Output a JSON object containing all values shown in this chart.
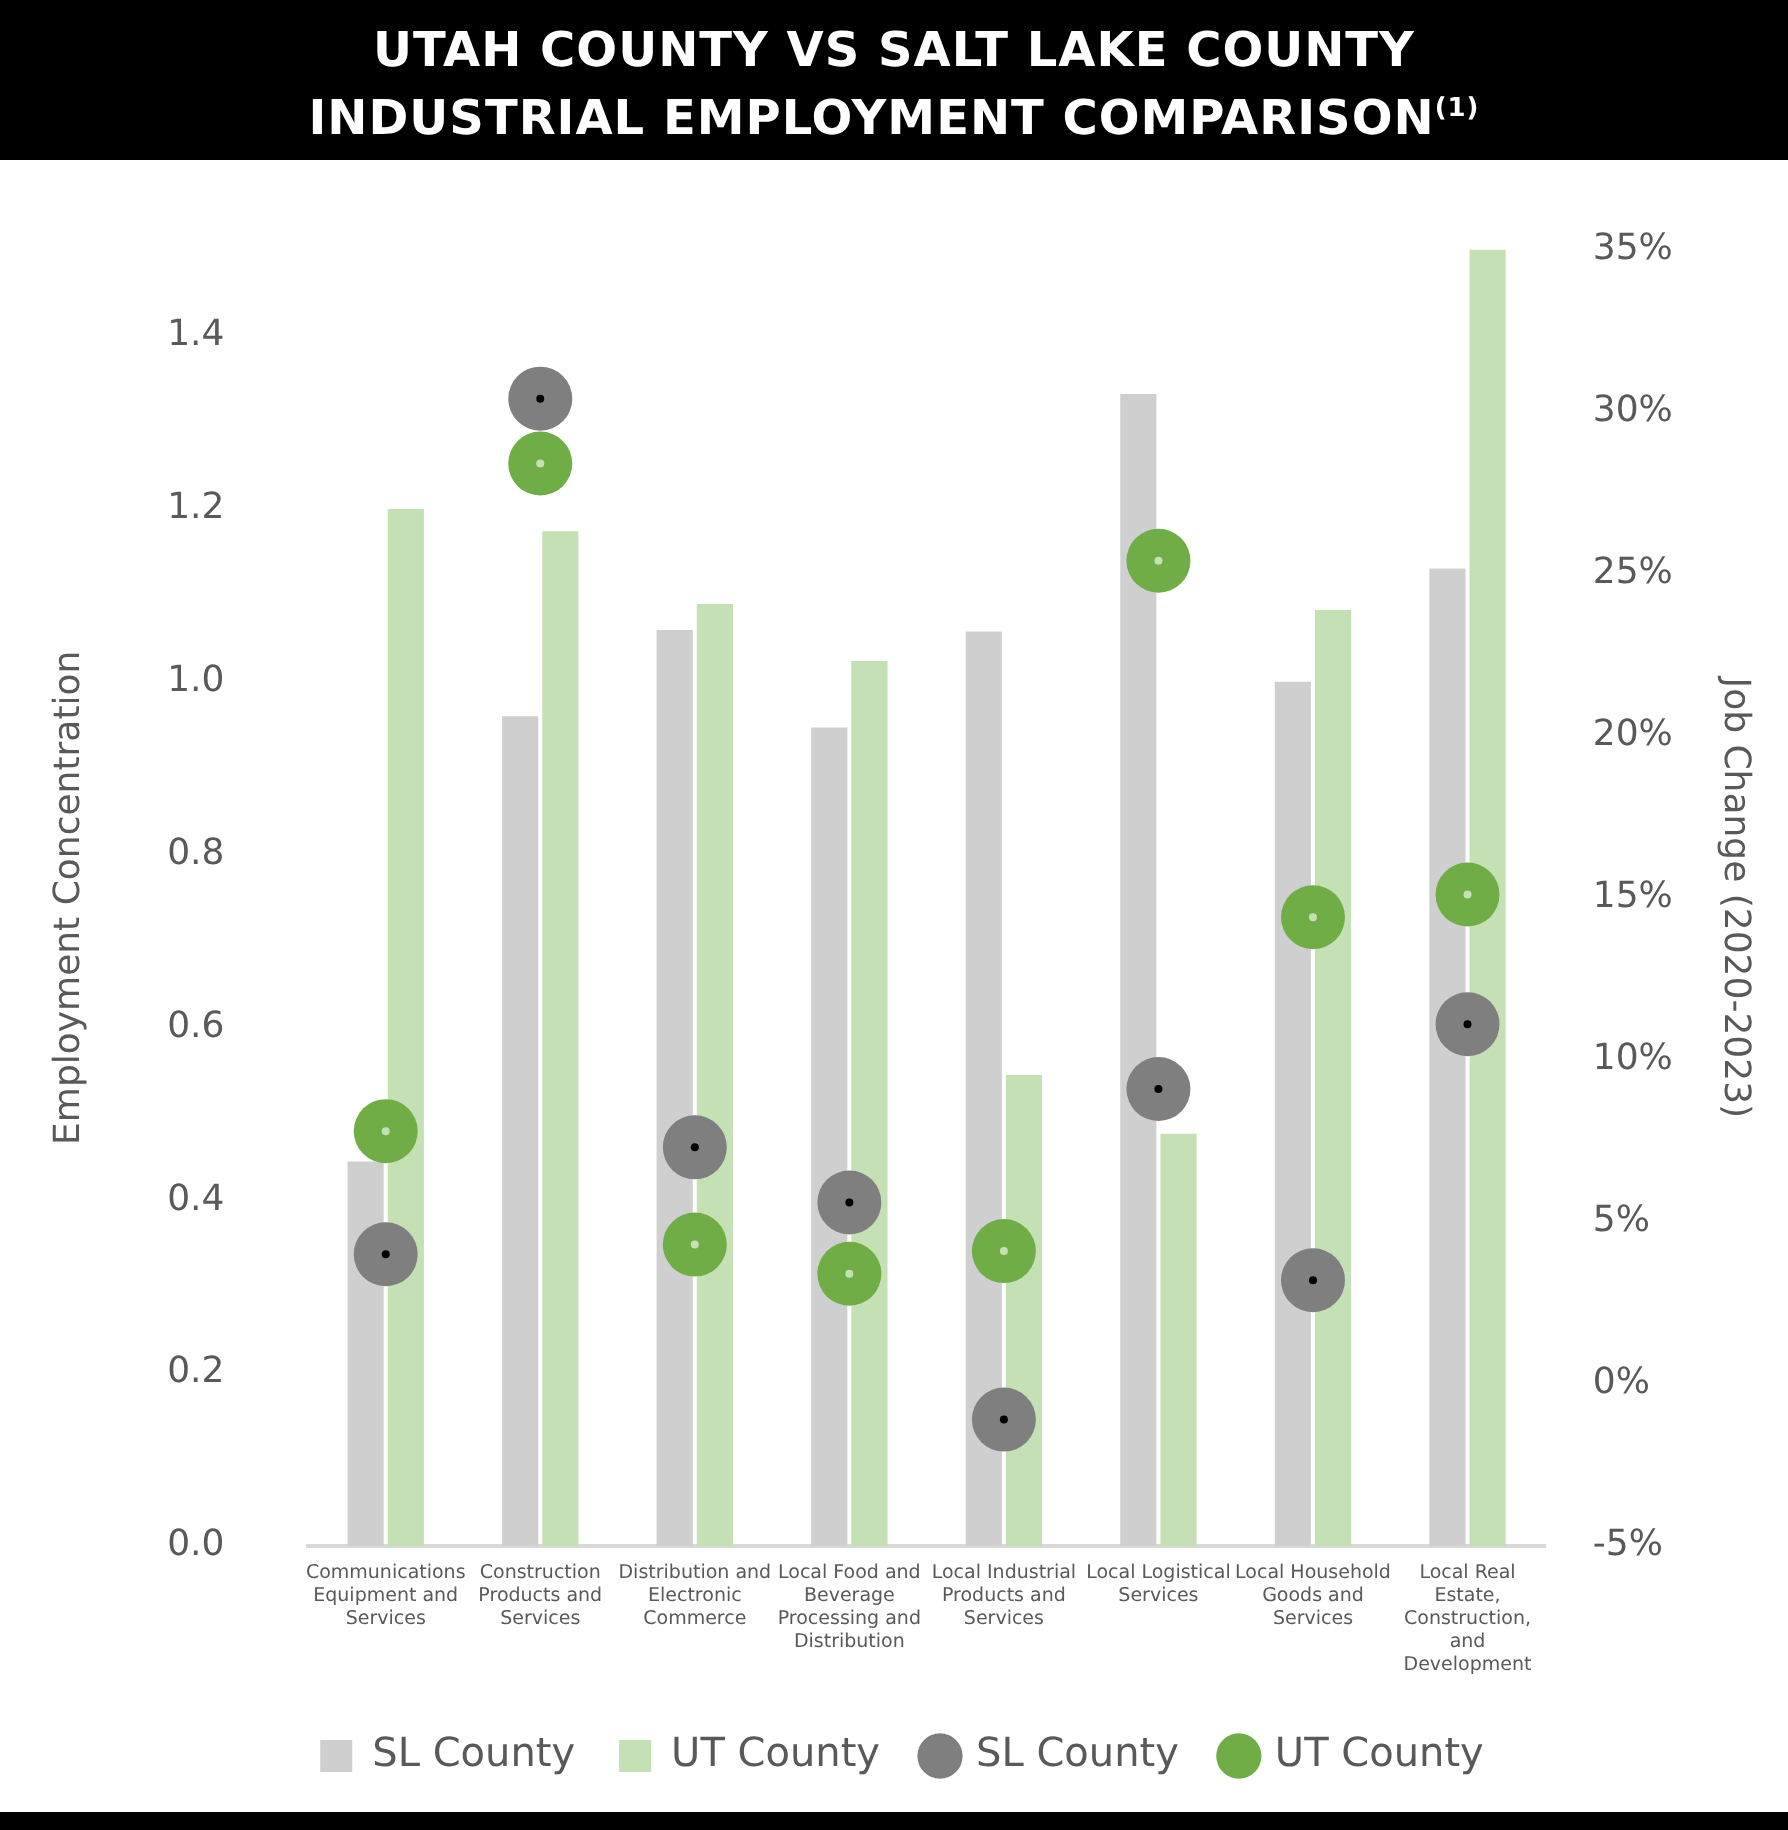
{
  "chart_data": {
    "type": "bar",
    "title": "UTAH COUNTY VS SALT LAKE COUNTY\nINDUSTRIAL EMPLOYMENT COMPARISON$^{(1)}$",
    "categories": [
      "Communications Equipment and Services",
      "Construction Products and Services",
      "Distribution and Electronic Commerce",
      "Local Food and Beverage Processing and Distribution",
      "Local Industrial Products and Services",
      "Local Logistical Services",
      "Local Household Goods and Services",
      "Local Real Estate, Construction, and Development"
    ],
    "series": [
      {
        "name": "SL County",
        "color": "#d0cfd0",
        "values": [
          0.445,
          0.96,
          1.06,
          0.947,
          1.058,
          1.333,
          1.0,
          1.131
        ]
      },
      {
        "name": "UT County",
        "color": "#c5e0b4",
        "values": [
          1.2,
          1.174,
          1.09,
          1.024,
          0.545,
          0.477,
          1.083,
          1.5
        ]
      },
      {
        "name": "SL County",
        "type": "scatter",
        "axis": "y2",
        "color": "#7f7f7f",
        "x": [
          "Communications Equipment and Services",
          "Construction Products and Services",
          "Distribution and Electronic Commerce",
          "Local Food and Beverage Processing and Distribution",
          "Local Industrial Products and Services",
          "Local Logistical Services",
          "Local Household Goods and Services",
          "Local Real Estate, Construction, and Development"
        ],
        "values": [
          4.0,
          30.4,
          7.3,
          5.6,
          -1.1,
          9.1,
          3.2,
          11.1
        ]
      },
      {
        "name": "UT County",
        "type": "scatter",
        "axis": "y2",
        "color": "#70ad47",
        "x": [
          "Communications Equipment and Services",
          "Construction Products and Services",
          "Distribution and Electronic Commerce",
          "Local Food and Beverage Processing and Distribution",
          "Local Industrial Products and Services",
          "Local Logistical Services",
          "Local Household Goods and Services",
          "Local Real Estate, Construction, and Development"
        ],
        "values": [
          7.8,
          28.4,
          4.3,
          3.4,
          4.1,
          25.4,
          14.4,
          15.1
        ]
      }
    ],
    "ylabel": "Employment Concentration",
    "y2label": "Job Change (2020-2023)",
    "ylim": [
      0,
      1.5
    ],
    "yticks": [
      {
        "value": 0,
        "label": "0.0"
      },
      {
        "value": 0.2,
        "label": "0.2"
      },
      {
        "value": 0.4,
        "label": "0.4"
      },
      {
        "value": 0.6,
        "label": "0.6"
      },
      {
        "value": 0.8,
        "label": "0.8"
      },
      {
        "value": 1,
        "label": "1.0"
      },
      {
        "value": 1.2,
        "label": "1.2"
      },
      {
        "value": 1.4,
        "label": "1.4"
      }
    ],
    "y2lim": [
      -5,
      35
    ],
    "y2ticks": [
      {
        "value": -5,
        "label": "-5%"
      },
      {
        "value": 0,
        "label": "0%"
      },
      {
        "value": 5,
        "label": "5%"
      },
      {
        "value": 10,
        "label": "10%"
      },
      {
        "value": 15,
        "label": "15%"
      },
      {
        "value": 20,
        "label": "20%"
      },
      {
        "value": 25,
        "label": "25%"
      },
      {
        "value": 30,
        "label": "30%"
      },
      {
        "value": 35,
        "label": "35%"
      }
    ],
    "grid": false,
    "legend": "bottom",
    "marker": "circle"
  }
}
